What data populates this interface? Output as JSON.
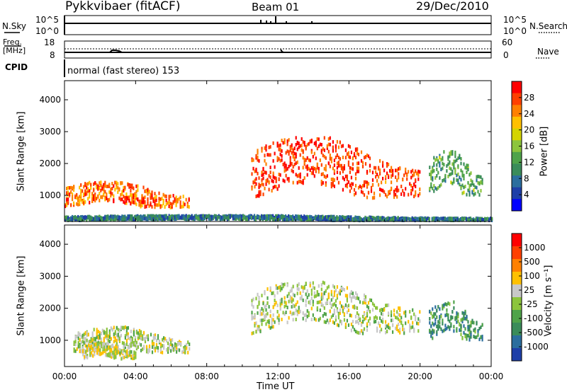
{
  "header": {
    "station": "Pykkvibaer (fitACF)",
    "beam": "Beam 01",
    "date": "29/Dec/2010"
  },
  "summary_panels": {
    "nsky_label": "N.Sky",
    "nsky_ticks": [
      "10^5",
      "10^0"
    ],
    "nsearch_label": "N.Search",
    "nsearch_ticks": [
      "10^5",
      "10^0"
    ],
    "freq_label": "Freq.",
    "freq_unit": "[MHz]",
    "freq_ticks": [
      "18",
      "8"
    ],
    "nave_label": "Nave",
    "nave_ticks": [
      "60",
      "0"
    ],
    "cpid_label": "CPID",
    "cpid_text": "normal (fast stereo) 153"
  },
  "power_panel": {
    "ylabel": "Slant Range [km]",
    "yticks": [
      "4000",
      "3000",
      "2000",
      "1000"
    ],
    "colorbar_label": "Power [dB]",
    "colorbar_ticks": [
      "28",
      "24",
      "20",
      "16",
      "12",
      "8",
      "4"
    ],
    "colors": [
      "#0000ff",
      "#1e3fa8",
      "#2b6e9e",
      "#3a8c5a",
      "#4fa34a",
      "#8cc43c",
      "#d4d400",
      "#ffc000",
      "#ff8000",
      "#ff4000",
      "#ff0000"
    ]
  },
  "velocity_panel": {
    "ylabel": "Slant Range [km]",
    "yticks": [
      "4000",
      "3000",
      "2000",
      "1000"
    ],
    "colorbar_label": "Velocity [m s⁻¹]",
    "colorbar_ticks": [
      "1000",
      "500",
      "100",
      "25",
      "-25",
      "-100",
      "-500",
      "-1000"
    ],
    "colors": [
      "#1e3fa8",
      "#2b6e9e",
      "#3a8c5a",
      "#4fa34a",
      "#8cc43c",
      "#c8c8c8",
      "#ffc000",
      "#ff8000",
      "#ff4000",
      "#ff0000"
    ]
  },
  "xaxis": {
    "label": "Time UT",
    "ticks": [
      "00:00",
      "04:00",
      "08:00",
      "12:00",
      "16:00",
      "20:00",
      "00:00"
    ]
  },
  "chart_data": [
    {
      "type": "heatmap",
      "title": "Power",
      "xlabel": "Time UT",
      "ylabel": "Slant Range [km]",
      "ylim": [
        180,
        4600
      ],
      "x_range": [
        "00:00",
        "24:00"
      ],
      "color_scale": [
        4,
        30
      ],
      "features": [
        {
          "name": "near-range band",
          "t_start_h": 0.0,
          "t_end_h": 24.0,
          "range_km": [
            200,
            350
          ],
          "power_db": 10
        },
        {
          "name": "morning echo",
          "t_start_h": 0.0,
          "t_end_h": 7.0,
          "range_km": [
            600,
            1400
          ],
          "power_db": 26
        },
        {
          "name": "midday arc",
          "t_start_h": 10.5,
          "t_end_h": 20.0,
          "range_km": [
            900,
            2800
          ],
          "power_db": 28
        },
        {
          "name": "evening patches",
          "t_start_h": 20.5,
          "t_end_h": 23.5,
          "range_km": [
            1000,
            2400
          ],
          "power_db": 14
        }
      ]
    },
    {
      "type": "heatmap",
      "title": "Velocity",
      "xlabel": "Time UT",
      "ylabel": "Slant Range [km]",
      "ylim": [
        180,
        4600
      ],
      "x_range": [
        "00:00",
        "24:00"
      ],
      "color_scale": [
        -1000,
        1000
      ],
      "features": [
        {
          "name": "morning ground scatter",
          "t_start_h": 0.5,
          "t_end_h": 7.0,
          "range_km": [
            600,
            1400
          ],
          "velocity": 0
        },
        {
          "name": "morning away flow",
          "t_start_h": 1.0,
          "t_end_h": 4.0,
          "range_km": [
            400,
            900
          ],
          "velocity": -100
        },
        {
          "name": "midday ground scatter",
          "t_start_h": 10.5,
          "t_end_h": 20.0,
          "range_km": [
            1200,
            2800
          ],
          "velocity": 0
        },
        {
          "name": "evening toward flow",
          "t_start_h": 20.5,
          "t_end_h": 23.5,
          "range_km": [
            1000,
            2200
          ],
          "velocity": 500
        }
      ]
    }
  ]
}
